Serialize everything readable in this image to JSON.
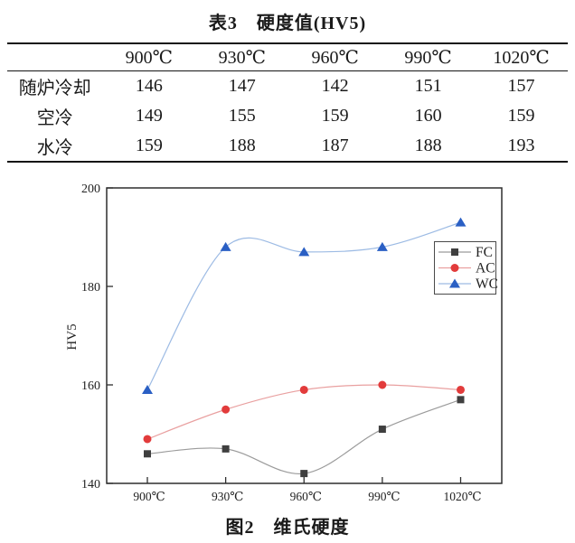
{
  "table": {
    "title": "表3　硬度值(HV5)",
    "col_headers": [
      "",
      "900℃",
      "930℃",
      "960℃",
      "990℃",
      "1020℃"
    ],
    "rows": [
      {
        "label": "随炉冷却",
        "values": [
          "146",
          "147",
          "142",
          "151",
          "157"
        ]
      },
      {
        "label": "空冷",
        "values": [
          "149",
          "155",
          "159",
          "160",
          "159"
        ]
      },
      {
        "label": "水冷",
        "values": [
          "159",
          "188",
          "187",
          "188",
          "193"
        ]
      }
    ]
  },
  "figure": {
    "caption": "图2　维氏硬度"
  },
  "chart_data": {
    "type": "line",
    "title": "",
    "xlabel": "",
    "ylabel": "HV5",
    "categories": [
      "900℃",
      "930℃",
      "960℃",
      "990℃",
      "1020℃"
    ],
    "series": [
      {
        "name": "FC",
        "values": [
          146,
          147,
          142,
          151,
          157
        ],
        "marker": "square",
        "marker_color": "#3f3f3f",
        "line_color": "#9b9b9b"
      },
      {
        "name": "AC",
        "values": [
          149,
          155,
          159,
          160,
          159
        ],
        "marker": "circle",
        "marker_color": "#e23b3b",
        "line_color": "#e9a0a0"
      },
      {
        "name": "WC",
        "values": [
          159,
          188,
          187,
          188,
          193
        ],
        "marker": "triangle",
        "marker_color": "#2a5fc4",
        "line_color": "#9dbbe4"
      }
    ],
    "ylim": [
      140,
      200
    ],
    "yticks": [
      140,
      160,
      180,
      200
    ],
    "grid": false,
    "smooth": true,
    "legend_position": "right-middle",
    "axis_color": "#2e2e2e",
    "text_color": "#222222"
  }
}
